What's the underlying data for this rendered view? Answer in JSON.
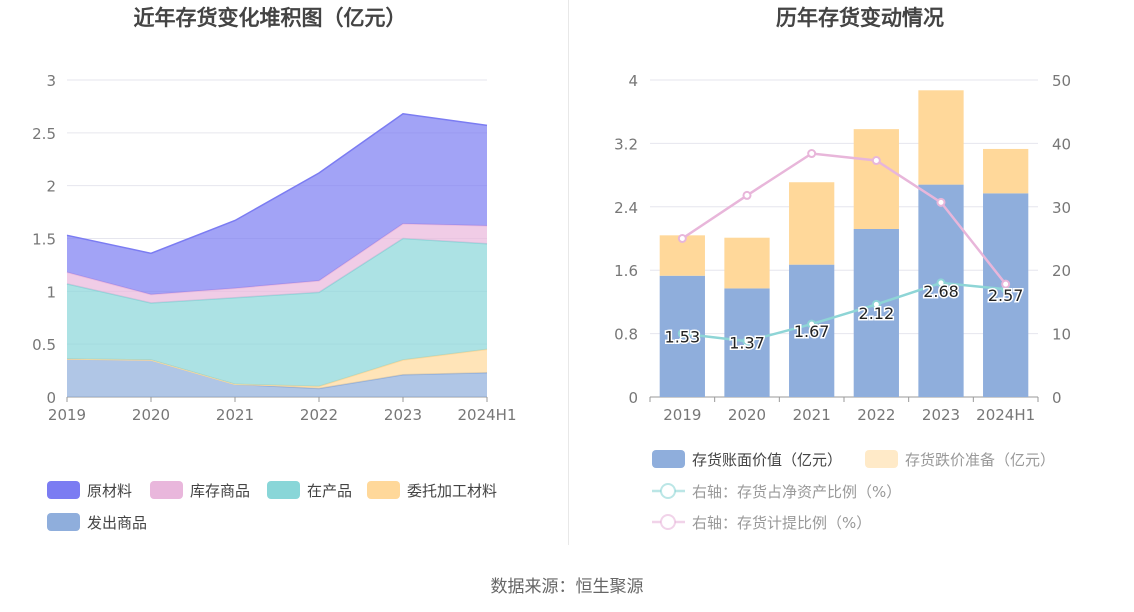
{
  "chart_data": [
    {
      "type": "area",
      "title": "近年存货变化堆积图（亿元）",
      "categories": [
        "2019",
        "2020",
        "2021",
        "2022",
        "2023",
        "2024H1"
      ],
      "ylim": [
        0,
        3
      ],
      "yticks": [
        "0",
        "0.5",
        "1",
        "1.5",
        "2",
        "2.5",
        "3"
      ],
      "stacked": true,
      "grid": true,
      "legend_position": "bottom",
      "series": [
        {
          "name": "发出商品",
          "color": "#8FAEDC",
          "values": [
            0.36,
            0.35,
            0.12,
            0.08,
            0.21,
            0.23
          ]
        },
        {
          "name": "委托加工材料",
          "color": "#FFD89A",
          "values": [
            0.0,
            0.0,
            0.0,
            0.02,
            0.14,
            0.22
          ]
        },
        {
          "name": "在产品",
          "color": "#89D6D8",
          "values": [
            0.71,
            0.54,
            0.82,
            0.89,
            1.15,
            1.0
          ]
        },
        {
          "name": "库存商品",
          "color": "#E9B7DC",
          "values": [
            0.11,
            0.08,
            0.09,
            0.11,
            0.14,
            0.17
          ]
        },
        {
          "name": "原材料",
          "color": "#7B7CF2",
          "values": [
            0.35,
            0.39,
            0.64,
            1.02,
            1.04,
            0.95
          ]
        }
      ],
      "legend_order": [
        "原材料",
        "库存商品",
        "在产品",
        "委托加工材料",
        "发出商品"
      ]
    },
    {
      "type": "bar",
      "title": "历年存货变动情况",
      "categories": [
        "2019",
        "2020",
        "2021",
        "2022",
        "2023",
        "2024H1"
      ],
      "stacked": true,
      "grid": true,
      "legend_position": "bottom",
      "ylim_left": [
        0,
        4
      ],
      "yticks_left": [
        "0",
        "0.8",
        "1.6",
        "2.4",
        "3.2",
        "4"
      ],
      "ylim_right": [
        0,
        50
      ],
      "yticks_right": [
        "0",
        "10",
        "20",
        "30",
        "40",
        "50"
      ],
      "bar_series": [
        {
          "name": "存货账面价值（亿元）",
          "color": "#8FAEDC",
          "values": [
            1.53,
            1.37,
            1.67,
            2.12,
            2.68,
            2.57
          ],
          "labels": [
            "1.53",
            "1.37",
            "1.67",
            "2.12",
            "2.68",
            "2.57"
          ]
        },
        {
          "name": "存货跌价准备（亿元）",
          "color": "#FFD89A",
          "values": [
            0.51,
            0.64,
            1.04,
            1.26,
            1.19,
            0.56
          ]
        }
      ],
      "line_series": [
        {
          "name": "右轴：存货占净资产比例（%）",
          "color": "#8ED5D6",
          "values": [
            10.0,
            8.8,
            11.5,
            14.6,
            18.0,
            17.0
          ]
        },
        {
          "name": "右轴：存货计提比例（%）",
          "color": "#E8B6DA",
          "values": [
            25.0,
            31.8,
            38.4,
            37.3,
            30.7,
            17.8
          ]
        }
      ]
    }
  ],
  "footer": {
    "source": "数据来源：恒生聚源"
  }
}
